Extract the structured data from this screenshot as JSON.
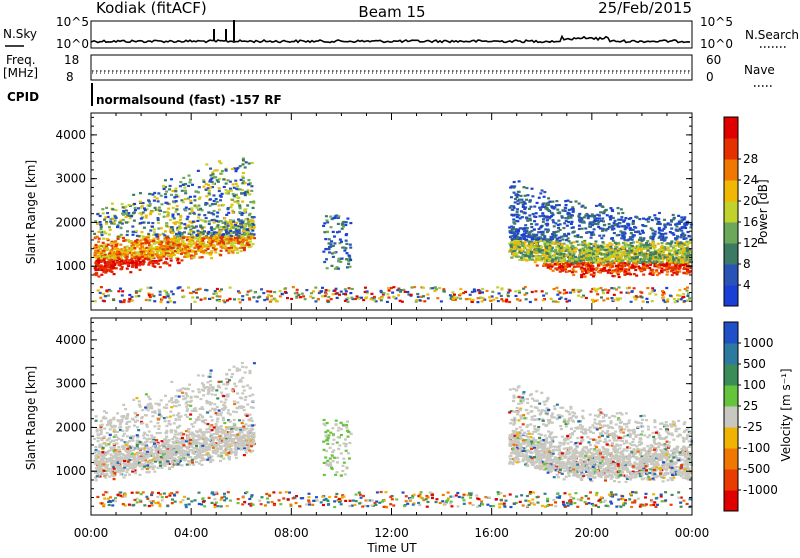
{
  "header": {
    "station": "Kodiak (fitACF)",
    "beam": "Beam 15",
    "date": "25/Feb/2015"
  },
  "top_panel": {
    "left_label": "N.Sky",
    "right_label": "N.Search",
    "left_ticks": [
      "10^5",
      "10^0"
    ],
    "right_ticks": [
      "10^5",
      "10^0"
    ]
  },
  "freq_panel": {
    "left_label_1": "Freq.",
    "left_label_2": "[MHz]",
    "right_label": "Nave",
    "left_ticks": [
      "18",
      "8"
    ],
    "right_ticks": [
      "60",
      "0"
    ]
  },
  "cpid": {
    "label": "CPID",
    "text": "normalsound (fast) -157 RF"
  },
  "chart_data": [
    {
      "type": "heatmap",
      "title": "",
      "ylabel": "Slant Range [km]",
      "ylim": [
        0,
        4500
      ],
      "yticks": [
        "1000",
        "2000",
        "3000",
        "4000"
      ],
      "xlabel": "Time UT",
      "xticks": [
        "00:00",
        "04:00",
        "08:00",
        "12:00",
        "16:00",
        "20:00",
        "00:00"
      ],
      "colorbar": {
        "label": "Power [dB]",
        "ticks": [
          "4",
          "8",
          "12",
          "16",
          "20",
          "24",
          "28"
        ],
        "colors": [
          "#1a3fd6",
          "#2a53b8",
          "#3c7a64",
          "#6ba85a",
          "#c2d22c",
          "#f0b800",
          "#f07800",
          "#e53000",
          "#e00000"
        ]
      }
    },
    {
      "type": "heatmap",
      "title": "",
      "ylabel": "Slant Range [km]",
      "ylim": [
        0,
        4500
      ],
      "yticks": [
        "1000",
        "2000",
        "3000",
        "4000"
      ],
      "xlabel": "Time UT",
      "xticks": [
        "00:00",
        "04:00",
        "08:00",
        "12:00",
        "16:00",
        "20:00",
        "00:00"
      ],
      "colorbar": {
        "label": "Velocity [m s⁻¹]",
        "ticks": [
          "1000",
          "500",
          "100",
          "25",
          "-25",
          "-100",
          "-500",
          "-1000"
        ],
        "colors": [
          "#2050c8",
          "#2c7aa0",
          "#3c8c5a",
          "#66c43c",
          "#c8c8c0",
          "#f0b400",
          "#f07800",
          "#e83c00",
          "#e00000"
        ]
      }
    }
  ],
  "x_axis_title": "Time UT"
}
